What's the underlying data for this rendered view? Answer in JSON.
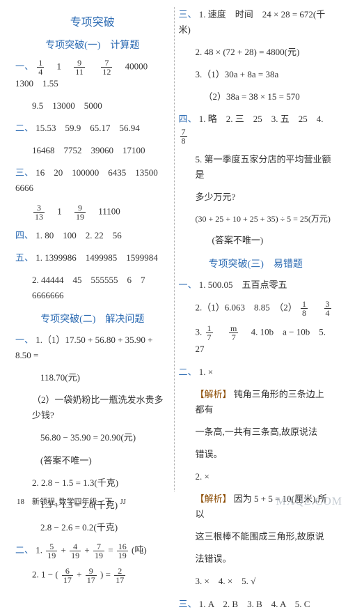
{
  "heading": "专项突破",
  "sub1": "专项突破(一)　计算题",
  "sub2": "专项突破(二)　解决问题",
  "sub3": "专项突破(三)　易错题",
  "left": {
    "l1a": "一、",
    "l1b": "　1　",
    "l1c": "　40000　1300　1.55",
    "l2": "9.5　13000　5000",
    "l3a": "二、",
    "l3b": "15.53　59.9　65.17　56.94",
    "l4": "16468　7752　39060　17100",
    "l5a": "三、",
    "l5b": "16　20　100000　6435　13500　6666",
    "l6a": "　1　",
    "l6b": "　11100",
    "l7a": "四、",
    "l7b": "1. 80　100　2. 22　56",
    "l8a": "五、",
    "l8b": "1. 1399986　1499985　1599984",
    "l9": "2. 44444　45　555555　6　7　6666666",
    "sol1a": "一、",
    "sol1b": "1.（1）17.50 + 56.80 + 35.90 + 8.50 =",
    "sol2": "118.70(元)",
    "sol3": "（2）一袋奶粉比一瓶洗发水贵多少钱?",
    "sol4": "56.80 − 35.90 = 20.90(元)",
    "sol5": "(答案不唯一)",
    "sol6": "2. 2.8 − 1.5 = 1.3(千克)",
    "sol7": "1.3 + 1.3 = 2.6(千克)",
    "sol8": "2.8 − 2.6 = 0.2(千克)",
    "sol9a": "二、",
    "sol9b": "1.  + ",
    "sol9c": " + ",
    "sol9d": " = ",
    "sol9e": "(吨)",
    "sol10a": "2. 1 − ( ",
    "sol10b": " + ",
    "sol10c": " ) = ",
    "f1_4_n": "1",
    "f1_4_d": "4",
    "f9_11_n": "9",
    "f9_11_d": "11",
    "f7_12_n": "7",
    "f7_12_d": "12",
    "f3_13_n": "3",
    "f3_13_d": "13",
    "f9_19_n": "9",
    "f9_19_d": "19",
    "f5_19_n": "5",
    "f5_19_d": "19",
    "f4_19_n": "4",
    "f4_19_d": "19",
    "f7_19_n": "7",
    "f7_19_d": "19",
    "f16_19_n": "16",
    "f16_19_d": "19",
    "f6_17_n": "6",
    "f6_17_d": "17",
    "f9_17_n": "9",
    "f9_17_d": "17",
    "f2_17_n": "2",
    "f2_17_d": "17"
  },
  "right": {
    "r1a": "三、",
    "r1b": "1. 速度　时间　24 × 28 = 672(千米)",
    "r2": "2. 48 × (72 + 28) = 4800(元)",
    "r3": "3.（1）30a + 8a = 38a",
    "r4": "（2）38a = 38 × 15 = 570",
    "r5a": "四、",
    "r5b": "1. 略　2. 三　25　3. 五　25　4. ",
    "r6": "5. 第一季度五家分店的平均营业额是",
    "r7": "多少万元?",
    "r8": "(30 + 25 + 10 + 25 + 35) ÷ 5 = 25(万元)",
    "r9": "(答案不唯一)",
    "e1a": "一、",
    "e1b": "1. 500.05　五百点零五",
    "e2a": "2.（1）6.063　8.85　（2）",
    "e3a": "3. ",
    "e3b": "　4. 10b　a − 10b　5. 27",
    "e4a": "二、",
    "e4b": "1. ×",
    "e5a": "【解析】",
    "e5b": "钝角三角形的三条边上都有",
    "e6": "一条高,一共有三条高,故原说法",
    "e7": "错误。",
    "e8": "2. ×",
    "e9a": "【解析】",
    "e9b": "因为 5 + 5 = 10(厘米),所以",
    "e10": "这三根棒不能围成三角形,故原说",
    "e11": "法错误。",
    "e12": "3. ×　4. ×　5. √",
    "e13a": "三、",
    "e13b": "1. A　2. B　3. B　4. A　5. C",
    "f7_8_n": "7",
    "f7_8_d": "8",
    "f1_8_n": "1",
    "f1_8_d": "8",
    "f3_4_n": "3",
    "f3_4_d": "4",
    "f1_7_n": "1",
    "f1_7_d": "7",
    "fm_7_n": "m",
    "fm_7_d": "7"
  },
  "footer": "18　新领程. 数学四年级　下　JJ",
  "watermark": "MXQE.COM"
}
